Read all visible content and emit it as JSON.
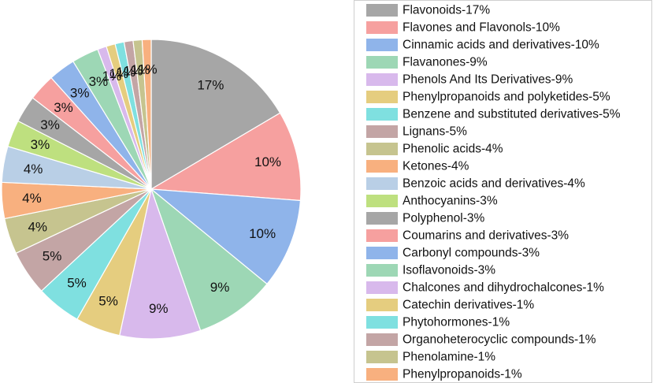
{
  "chart_data": {
    "type": "pie",
    "title": "",
    "legend_position": "right",
    "slices": [
      {
        "label": "Flavonoids-17%",
        "value": 17,
        "display": "17%",
        "color": "#a6a6a6"
      },
      {
        "label": "Flavones and Flavonols-10%",
        "value": 10,
        "display": "10%",
        "color": "#f6a09f"
      },
      {
        "label": "Cinnamic acids and derivatives-10%",
        "value": 10,
        "display": "10%",
        "color": "#8fb4ea"
      },
      {
        "label": "Flavanones-9%",
        "value": 9,
        "display": "9%",
        "color": "#9dd7b5"
      },
      {
        "label": "Phenols And Its Derivatives-9%",
        "value": 9,
        "display": "9%",
        "color": "#d8b9ec"
      },
      {
        "label": "Phenylpropanoids and polyketides-5%",
        "value": 5,
        "display": "5%",
        "color": "#e5cd7f"
      },
      {
        "label": "Benzene and substituted derivatives-5%",
        "value": 5,
        "display": "5%",
        "color": "#7fe0e0"
      },
      {
        "label": "Lignans-5%",
        "value": 5,
        "display": "5%",
        "color": "#c3a5a5"
      },
      {
        "label": "Phenolic acids-4%",
        "value": 4,
        "display": "4%",
        "color": "#c6c48f"
      },
      {
        "label": "Ketones-4%",
        "value": 4,
        "display": "4%",
        "color": "#f8b07f"
      },
      {
        "label": "Benzoic acids and derivatives-4%",
        "value": 4,
        "display": "4%",
        "color": "#b9cfe6"
      },
      {
        "label": "Anthocyanins-3%",
        "value": 3,
        "display": "3%",
        "color": "#bee07f"
      },
      {
        "label": "Polyphenol-3%",
        "value": 3,
        "display": "3%",
        "color": "#a6a6a6"
      },
      {
        "label": "Coumarins and derivatives-3%",
        "value": 3,
        "display": "3%",
        "color": "#f6a09f"
      },
      {
        "label": "Carbonyl compounds-3%",
        "value": 3,
        "display": "3%",
        "color": "#8fb4ea"
      },
      {
        "label": "Isoflavonoids-3%",
        "value": 3,
        "display": "3%",
        "color": "#9dd7b5"
      },
      {
        "label": "Chalcones and dihydrochalcones-1%",
        "value": 1,
        "display": "1%",
        "color": "#d8b9ec"
      },
      {
        "label": "Catechin derivatives-1%",
        "value": 1,
        "display": "1%",
        "color": "#e5cd7f"
      },
      {
        "label": "Phytohormones-1%",
        "value": 1,
        "display": "1%",
        "color": "#7fe0e0"
      },
      {
        "label": "Organoheterocyclic compounds-1%",
        "value": 1,
        "display": "1%",
        "color": "#c3a5a5"
      },
      {
        "label": "Phenolamine-1%",
        "value": 1,
        "display": "1%",
        "color": "#c6c48f"
      },
      {
        "label": "Phenylpropanoids-1%",
        "value": 1,
        "display": "1%",
        "color": "#f8b07f"
      }
    ]
  }
}
